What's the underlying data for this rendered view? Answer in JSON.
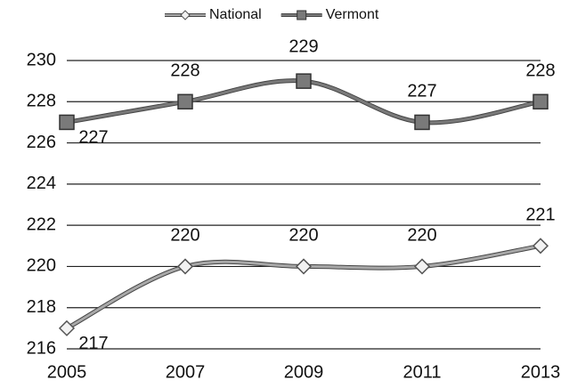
{
  "chart_data": {
    "type": "line",
    "categories": [
      "2005",
      "2007",
      "2009",
      "2011",
      "2013"
    ],
    "series": [
      {
        "name": "National",
        "color": "#a8a8a8",
        "marker": "diamond",
        "values": [
          217,
          220,
          220,
          220,
          221
        ]
      },
      {
        "name": "Vermont",
        "color": "#7a7a7a",
        "marker": "square",
        "values": [
          227,
          228,
          229,
          227,
          228
        ]
      }
    ],
    "ylim": [
      216,
      230
    ],
    "yticks": [
      216,
      218,
      220,
      222,
      224,
      226,
      228,
      230
    ],
    "grid": true,
    "legend": "top",
    "smooth": true
  }
}
